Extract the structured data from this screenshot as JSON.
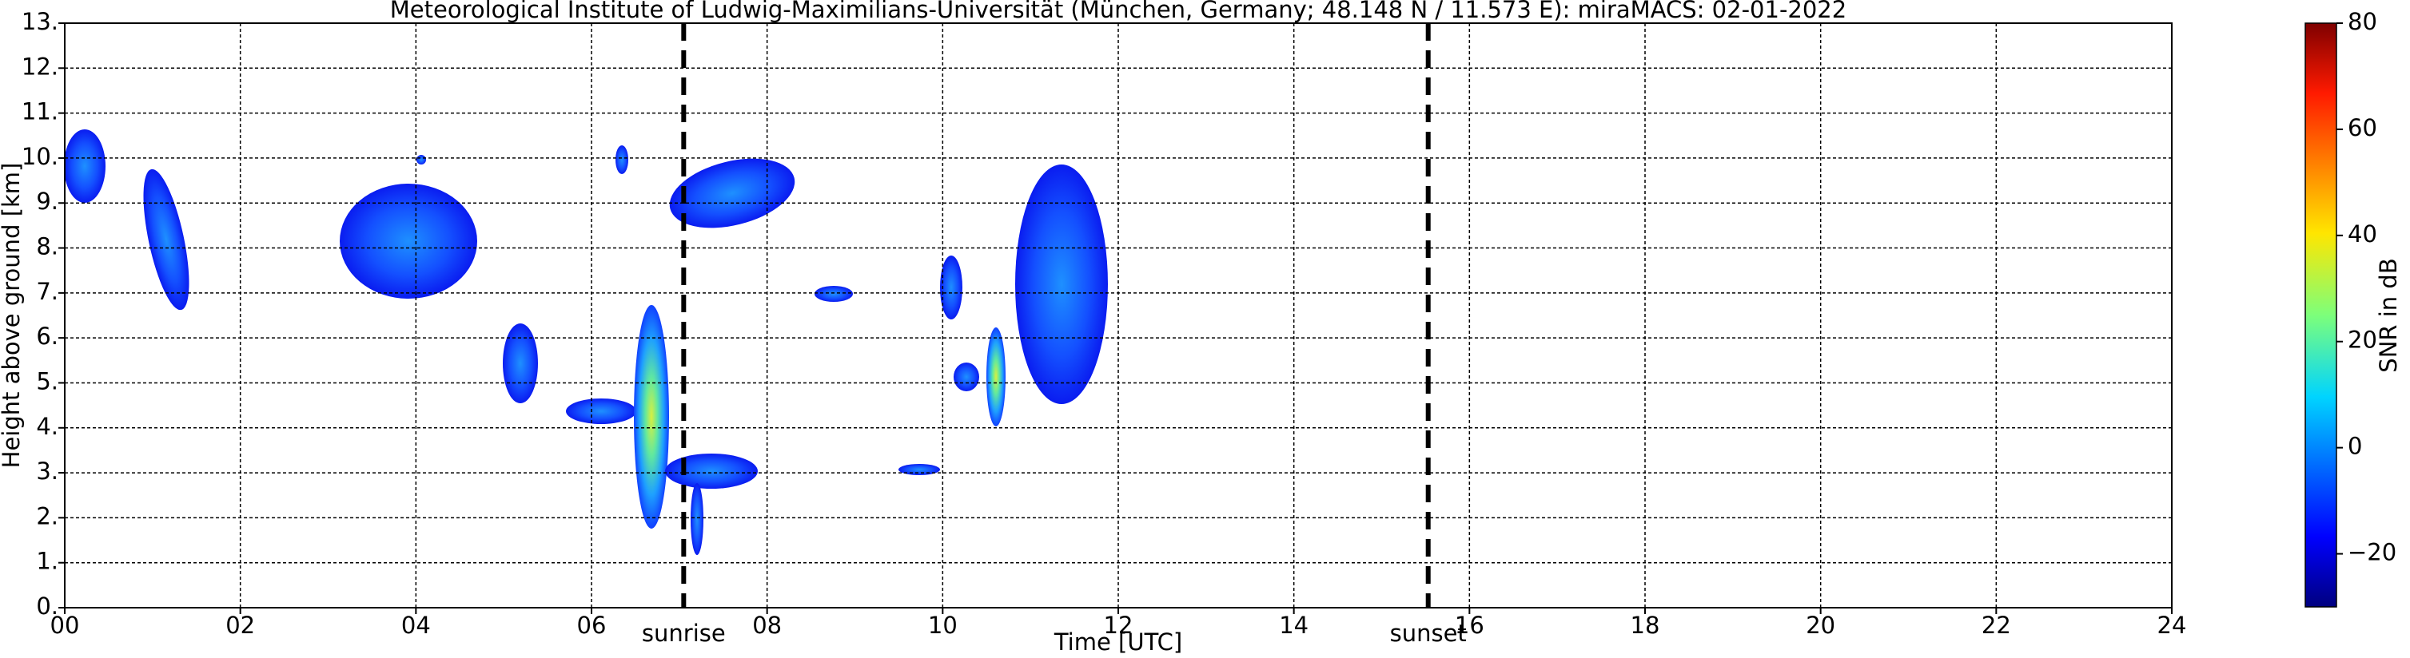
{
  "chart_data": {
    "type": "heatmap",
    "title": "Meteorological Institute of Ludwig-Maximilians-Universität (München, Germany; 48.148 N / 11.573 E):    miraMACS: 02-01-2022",
    "xlabel": "Time [UTC]",
    "ylabel": "Height above ground [km]",
    "xlim": [
      0,
      24
    ],
    "xticks": [
      {
        "value": 0,
        "label": "00"
      },
      {
        "value": 2,
        "label": "02"
      },
      {
        "value": 4,
        "label": "04"
      },
      {
        "value": 6,
        "label": "06"
      },
      {
        "value": 8,
        "label": "08"
      },
      {
        "value": 10,
        "label": "10"
      },
      {
        "value": 12,
        "label": "12"
      },
      {
        "value": 14,
        "label": "14"
      },
      {
        "value": 16,
        "label": "16"
      },
      {
        "value": 18,
        "label": "18"
      },
      {
        "value": 20,
        "label": "20"
      },
      {
        "value": 22,
        "label": "22"
      },
      {
        "value": 24,
        "label": "24"
      }
    ],
    "ylim": [
      0,
      13
    ],
    "yticks": [
      {
        "value": 0,
        "label": "0."
      },
      {
        "value": 1,
        "label": "1."
      },
      {
        "value": 2,
        "label": "2."
      },
      {
        "value": 3,
        "label": "3."
      },
      {
        "value": 4,
        "label": "4."
      },
      {
        "value": 5,
        "label": "5."
      },
      {
        "value": 6,
        "label": "6."
      },
      {
        "value": 7,
        "label": "7."
      },
      {
        "value": 8,
        "label": "8."
      },
      {
        "value": 9,
        "label": "9."
      },
      {
        "value": 10,
        "label": "10."
      },
      {
        "value": 11,
        "label": "11."
      },
      {
        "value": 12,
        "label": "12."
      },
      {
        "value": 13,
        "label": "13."
      }
    ],
    "grid": true,
    "vlines": [
      {
        "x": 7.05,
        "label": "sunrise"
      },
      {
        "x": 15.53,
        "label": "sunset"
      }
    ],
    "colorbar": {
      "label": "SNR in dB",
      "lim": [
        -30,
        80
      ],
      "ticks": [
        {
          "value": -20,
          "label": "−20"
        },
        0,
        20,
        40,
        60,
        80
      ]
    }
  }
}
